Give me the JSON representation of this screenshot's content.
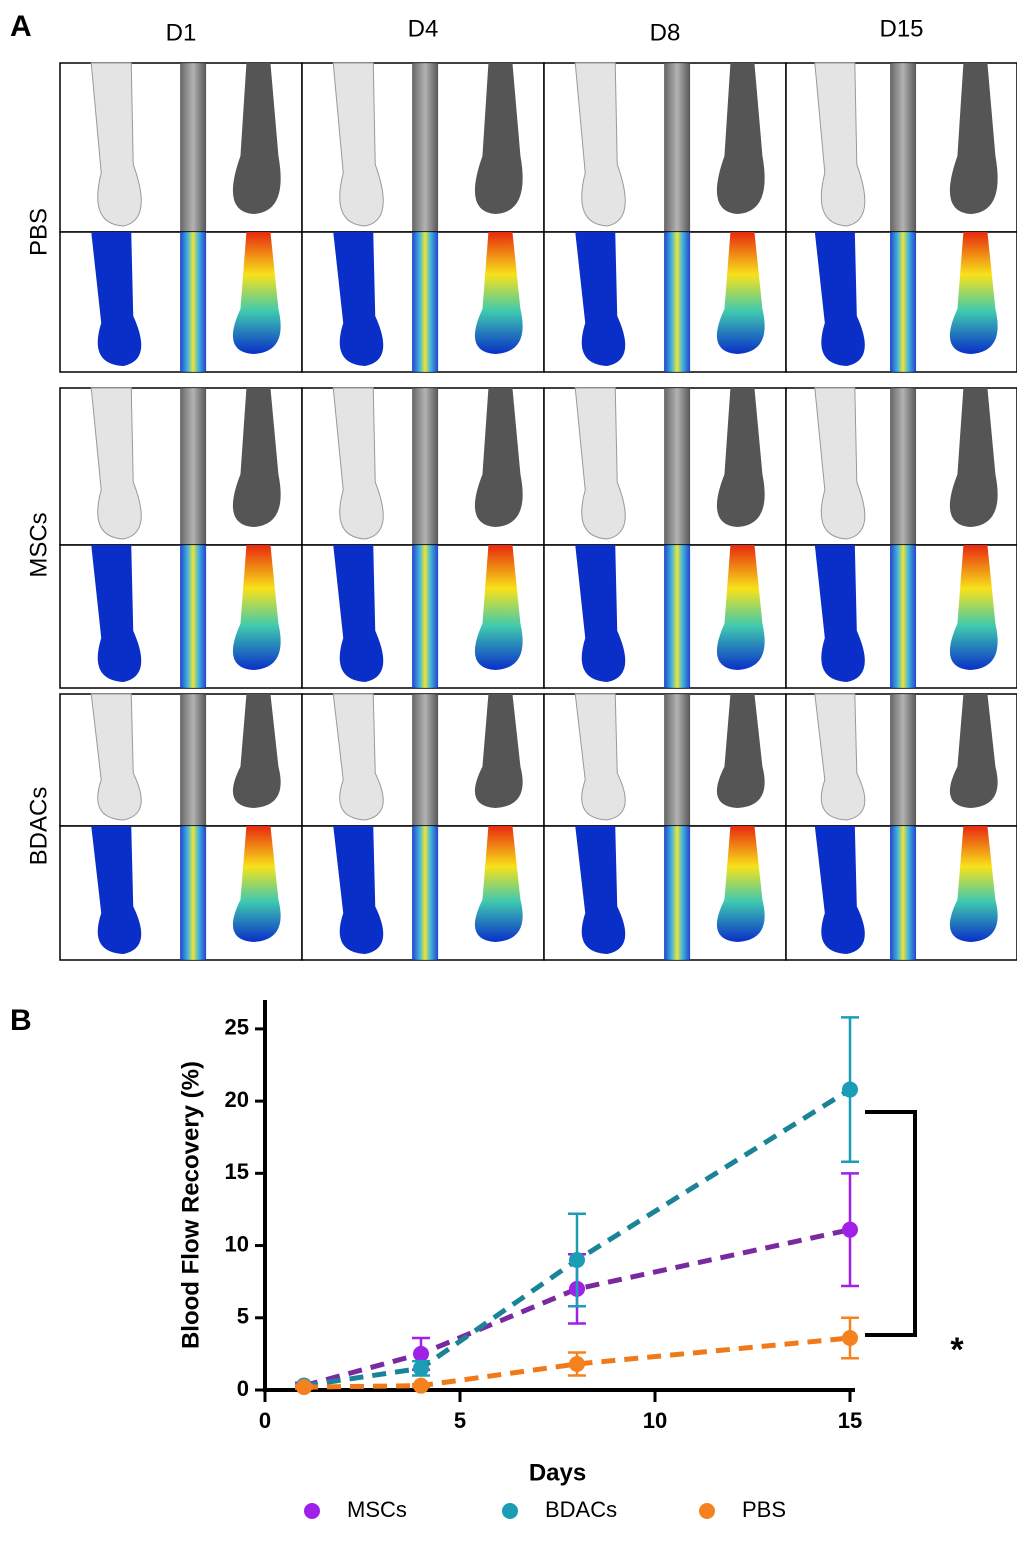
{
  "panel_a": {
    "label": "A",
    "columns": [
      "D1",
      "D4",
      "D8",
      "D15"
    ],
    "rows": [
      "PBS",
      "MSCs",
      "BDACs"
    ]
  },
  "panel_b": {
    "label": "B"
  },
  "chart_data": {
    "type": "line",
    "x_label": "Days",
    "y_label": "Blood Flow Recovery (%)",
    "xlim": [
      0,
      15
    ],
    "xticks": [
      0,
      5,
      10,
      15
    ],
    "ylim": [
      0,
      27
    ],
    "yticks": [
      0,
      5,
      10,
      15,
      20,
      25
    ],
    "line_style": "dashed",
    "annotation": "*",
    "legend_position": "bottom",
    "series": [
      {
        "name": "MSCs",
        "color": "#a020e8",
        "line_color": "#7a2aa0",
        "x": [
          1,
          4,
          8,
          15
        ],
        "values": [
          0.3,
          2.5,
          7.0,
          11.1
        ],
        "errors": [
          0.2,
          1.1,
          2.4,
          3.9
        ]
      },
      {
        "name": "BDACs",
        "color": "#1a9db5",
        "line_color": "#1a8398",
        "x": [
          1,
          4,
          8,
          15
        ],
        "values": [
          0.3,
          1.5,
          9.0,
          20.8
        ],
        "errors": [
          0.1,
          0.5,
          3.2,
          5.0
        ]
      },
      {
        "name": "PBS",
        "color": "#f5821f",
        "line_color": "#f07a1a",
        "x": [
          1,
          4,
          8,
          15
        ],
        "values": [
          0.2,
          0.3,
          1.8,
          3.6
        ],
        "errors": [
          0.1,
          0.1,
          0.8,
          1.4
        ]
      }
    ]
  }
}
